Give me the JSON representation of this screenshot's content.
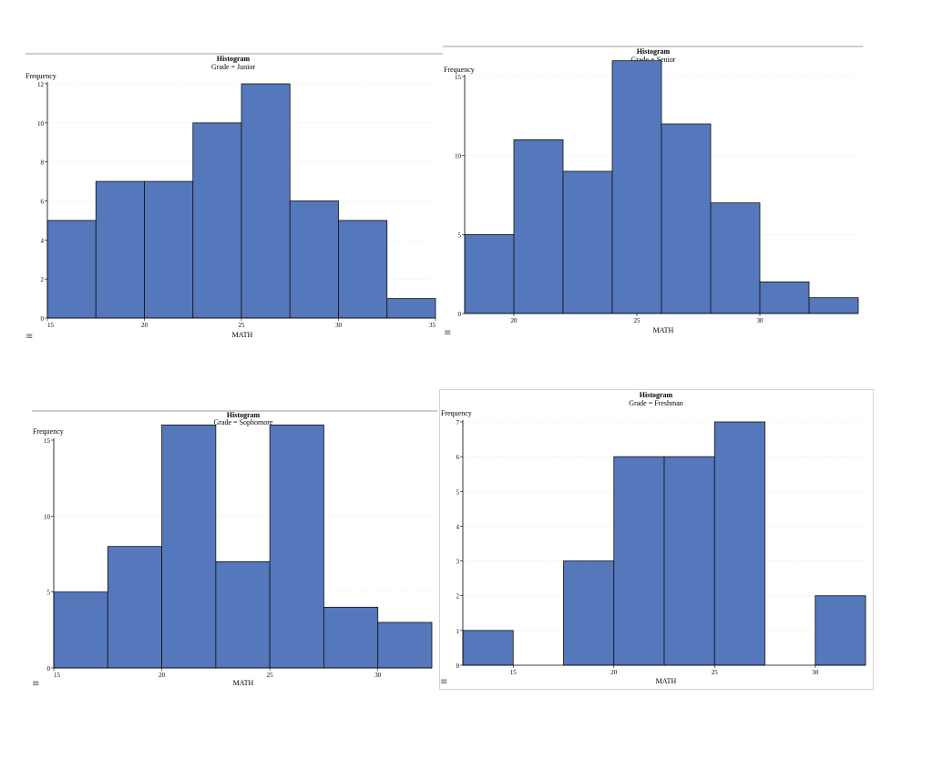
{
  "chart_data": [
    {
      "type": "bar",
      "title": "Histogram",
      "subtitle": "Grade = Junior",
      "xlabel": "MATH",
      "ylabel": "Frequency",
      "bins": [
        [
          15,
          17.5
        ],
        [
          17.5,
          20
        ],
        [
          20,
          22.5
        ],
        [
          22.5,
          25
        ],
        [
          25,
          27.5
        ],
        [
          27.5,
          30
        ],
        [
          30,
          32.5
        ],
        [
          32.5,
          35
        ]
      ],
      "values": [
        5,
        7,
        7,
        10,
        12,
        6,
        5,
        1
      ],
      "xlim": [
        15,
        35
      ],
      "ylim": [
        0,
        12
      ],
      "xticks": [
        "15",
        "20",
        "25",
        "30",
        "35"
      ],
      "yticks": [
        "0",
        "2",
        "4",
        "6",
        "8",
        "10",
        "12"
      ],
      "grid": true,
      "bar_color": "#5577bb",
      "menu_icon": "hamburger-menu-icon"
    },
    {
      "type": "bar",
      "title": "Histogram",
      "subtitle": "Grade = Senior",
      "xlabel": "MATH",
      "ylabel": "Frequency",
      "bins": [
        [
          18,
          20
        ],
        [
          20,
          22
        ],
        [
          22,
          24
        ],
        [
          24,
          26
        ],
        [
          26,
          28
        ],
        [
          28,
          30
        ],
        [
          30,
          32
        ],
        [
          32,
          34
        ]
      ],
      "values": [
        5,
        11,
        9,
        16,
        12,
        7,
        2,
        1
      ],
      "xlim": [
        18,
        34
      ],
      "ylim": [
        0,
        15
      ],
      "xticks": [
        "20",
        "25",
        "30"
      ],
      "yticks": [
        "0",
        "5",
        "10",
        "15"
      ],
      "grid": true,
      "bar_color": "#5577bb",
      "menu_icon": "hamburger-menu-icon"
    },
    {
      "type": "bar",
      "title": "Histogram",
      "subtitle": "Grade = Sophomore",
      "xlabel": "MATH",
      "ylabel": "Frequency",
      "bins": [
        [
          15,
          17.5
        ],
        [
          17.5,
          20
        ],
        [
          20,
          22.5
        ],
        [
          22.5,
          25
        ],
        [
          25,
          27.5
        ],
        [
          27.5,
          30
        ],
        [
          30,
          32.5
        ]
      ],
      "values": [
        5,
        8,
        16,
        7,
        16,
        4,
        3
      ],
      "xlim": [
        15,
        32.5
      ],
      "ylim": [
        0,
        15
      ],
      "xticks": [
        "15",
        "20",
        "25",
        "30"
      ],
      "yticks": [
        "0",
        "5",
        "10",
        "15"
      ],
      "grid": true,
      "bar_color": "#5577bb",
      "menu_icon": "hamburger-menu-icon"
    },
    {
      "type": "bar",
      "title": "Histogram",
      "subtitle": "Grade = Freshman",
      "xlabel": "MATH",
      "ylabel": "Frequency",
      "bins": [
        [
          12.5,
          15
        ],
        [
          15,
          17.5
        ],
        [
          17.5,
          20
        ],
        [
          20,
          22.5
        ],
        [
          22.5,
          25
        ],
        [
          25,
          27.5
        ],
        [
          27.5,
          30
        ],
        [
          30,
          32.5
        ]
      ],
      "values": [
        1,
        0,
        3,
        6,
        6,
        7,
        0,
        2
      ],
      "xlim": [
        12.5,
        32.5
      ],
      "ylim": [
        0,
        7
      ],
      "xticks": [
        "15",
        "20",
        "25",
        "30"
      ],
      "yticks": [
        "0",
        "1",
        "2",
        "3",
        "4",
        "5",
        "6",
        "7"
      ],
      "grid": true,
      "bar_color": "#5577bb",
      "menu_icon": "hamburger-menu-icon"
    }
  ]
}
